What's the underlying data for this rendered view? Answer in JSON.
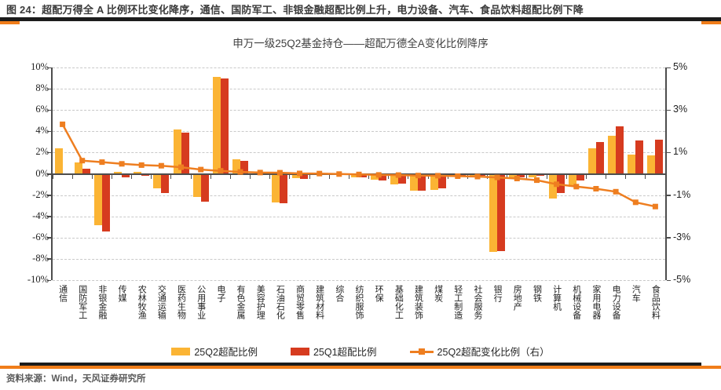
{
  "header": {
    "caption": "图 24：超配万得全 A 比例环比变化降序，通信、国防军工、非银金融超配比例上升，电力设备、汽车、食品饮料超配比例下降"
  },
  "footer": {
    "source": "资料来源：Wind，天风证券研究所"
  },
  "colors": {
    "bar_q2_yellow": "#FBB434",
    "bar_q1_red": "#D63B1F",
    "line_orange": "#EE7E20",
    "frame_orange": "#F07D1A",
    "frame_black": "#1c1c1c",
    "grid_gray": "#c9c9c9",
    "axis_gray": "#4d4d4d"
  },
  "chart_data": {
    "type": "bar",
    "title": "申万一级25Q2基金持仓——超配万德全A变化比例降序",
    "categories": [
      "通信",
      "国防军工",
      "非银金融",
      "传媒",
      "农林牧渔",
      "交通运输",
      "医药生物",
      "公用事业",
      "电子",
      "有色金属",
      "美容护理",
      "石油石化",
      "商贸零售",
      "建筑材料",
      "综合",
      "纺织服饰",
      "环保",
      "基础化工",
      "建筑装饰",
      "煤炭",
      "轻工制造",
      "社会服务",
      "银行",
      "房地产",
      "钢铁",
      "计算机",
      "机械设备",
      "家用电器",
      "电力设备",
      "汽车",
      "食品饮料"
    ],
    "series": [
      {
        "name": "25Q2超配比例",
        "type": "bar",
        "axis": "left",
        "values": [
          2.4,
          1.05,
          -4.85,
          0.2,
          0.2,
          -1.4,
          4.15,
          -2.2,
          9.1,
          1.35,
          0.05,
          -2.7,
          -0.4,
          -0.1,
          -0.05,
          -0.3,
          -0.55,
          -1.0,
          -1.6,
          -1.5,
          -0.25,
          -0.35,
          -7.35,
          -0.5,
          -0.3,
          -2.3,
          -1.2,
          2.4,
          3.6,
          1.8,
          1.7
        ]
      },
      {
        "name": "25Q1超配比例",
        "type": "bar",
        "axis": "left",
        "values": [
          0.07,
          0.45,
          -5.45,
          -0.3,
          -0.2,
          -1.8,
          3.85,
          -2.65,
          9.0,
          1.25,
          -0.05,
          -2.75,
          -0.45,
          -0.12,
          -0.05,
          -0.35,
          -0.6,
          -0.95,
          -1.55,
          -1.4,
          -0.15,
          -0.2,
          -7.25,
          -0.3,
          -0.15,
          -1.8,
          -0.6,
          3.0,
          4.45,
          3.1,
          3.2
        ]
      },
      {
        "name": "25Q2超配变化比例（右）",
        "type": "line",
        "axis": "right",
        "values": [
          2.33,
          0.62,
          0.55,
          0.47,
          0.41,
          0.38,
          0.31,
          0.2,
          0.14,
          0.09,
          0.06,
          0.05,
          0.02,
          0.01,
          -0.01,
          -0.03,
          -0.05,
          -0.06,
          -0.08,
          -0.09,
          -0.11,
          -0.13,
          -0.17,
          -0.22,
          -0.3,
          -0.49,
          -0.6,
          -0.7,
          -0.84,
          -1.34,
          -1.54
        ]
      }
    ],
    "left_axis": {
      "ticks": [
        "10%",
        "8%",
        "6%",
        "4%",
        "2%",
        "0%",
        "-2%",
        "-4%",
        "-6%",
        "-8%",
        "-10%"
      ],
      "min": -10,
      "max": 10,
      "unit": "%"
    },
    "right_axis": {
      "ticks": [
        "5%",
        "3%",
        "1%",
        "-1%",
        "-3%",
        "-5%"
      ],
      "min": -5,
      "max": 5,
      "unit": "%"
    },
    "grid": "horizontal dashed every 2% (left axis), solid zero line",
    "legend_position": "bottom"
  }
}
